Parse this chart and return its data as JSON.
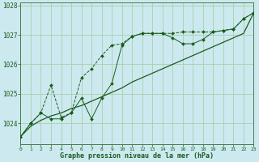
{
  "x": [
    0,
    1,
    2,
    3,
    4,
    5,
    6,
    7,
    8,
    9,
    10,
    11,
    12,
    13,
    14,
    15,
    16,
    17,
    18,
    19,
    20,
    21,
    22,
    23
  ],
  "line_dashed": [
    1023.55,
    1024.0,
    1024.35,
    1025.3,
    1024.2,
    1024.35,
    1025.55,
    1025.85,
    1026.3,
    1026.65,
    1026.7,
    1026.95,
    1027.05,
    1027.05,
    1027.05,
    1027.05,
    1027.1,
    1027.1,
    1027.1,
    1027.1,
    1027.15,
    1027.2,
    1027.55,
    1027.75
  ],
  "line_solid": [
    1023.55,
    1024.0,
    1024.35,
    1024.15,
    1024.15,
    1024.35,
    1024.85,
    1024.15,
    1024.85,
    1025.35,
    1026.65,
    1026.95,
    1027.05,
    1027.05,
    1027.05,
    1026.9,
    1026.7,
    1026.7,
    1026.85,
    1027.1,
    1027.15,
    1027.2,
    1027.55,
    1027.75
  ],
  "line_trend": [
    1023.55,
    1023.9,
    1024.1,
    1024.25,
    1024.35,
    1024.5,
    1024.6,
    1024.75,
    1024.9,
    1025.05,
    1025.2,
    1025.4,
    1025.55,
    1025.7,
    1025.85,
    1026.0,
    1026.15,
    1026.3,
    1026.45,
    1026.6,
    1026.75,
    1026.9,
    1027.05,
    1027.75
  ],
  "bg_color": "#cce9f0",
  "line_color": "#1a5c1a",
  "grid_color": "#aacfaa",
  "xlabel": "Graphe pression niveau de la mer (hPa)",
  "ylabel_ticks": [
    1024,
    1025,
    1026,
    1027,
    1028
  ],
  "ylim": [
    1023.3,
    1028.1
  ],
  "xlim": [
    0,
    23
  ],
  "xlabel_color": "#1a5c1a",
  "border_color": "#4a7a4a",
  "xtick_labels": [
    "0",
    "1",
    "2",
    "3",
    "4",
    "5",
    "6",
    "7",
    "8",
    "9",
    "10",
    "11",
    "12",
    "13",
    "14",
    "15",
    "16",
    "17",
    "18",
    "19",
    "20",
    "21",
    "22",
    "23"
  ]
}
